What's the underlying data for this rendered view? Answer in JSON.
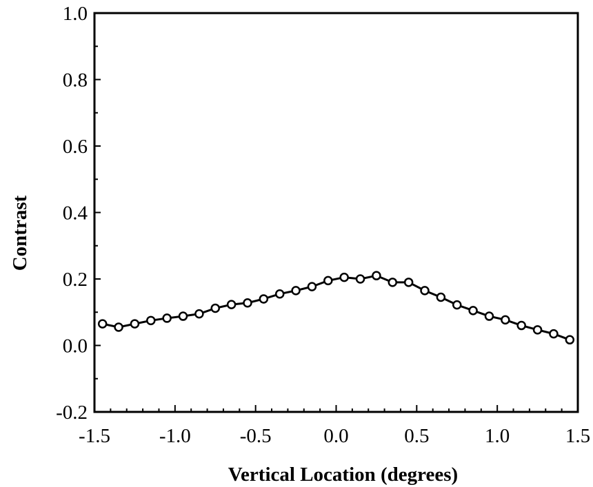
{
  "chart_data": {
    "type": "line",
    "title": "",
    "xlabel": "Vertical Location (degrees)",
    "ylabel": "Contrast",
    "xlim": [
      -1.5,
      1.5
    ],
    "ylim": [
      -0.2,
      1.0
    ],
    "x_ticks": [
      -1.5,
      -1.0,
      -0.5,
      0.0,
      0.5,
      1.0,
      1.5
    ],
    "x_tick_labels": [
      "-1.5",
      "-1.0",
      "-0.5",
      "0.0",
      "0.5",
      "1.0",
      "1.5"
    ],
    "y_ticks": [
      -0.2,
      0.0,
      0.2,
      0.4,
      0.6,
      0.8,
      1.0
    ],
    "y_tick_labels": [
      "-0.2",
      "0.0",
      "0.2",
      "0.4",
      "0.6",
      "0.8",
      "1.0"
    ],
    "grid": false,
    "legend": "none",
    "marker": "open-circle",
    "line_color": "#000000",
    "series": [
      {
        "x": [
          -1.45,
          -1.35,
          -1.25,
          -1.15,
          -1.05,
          -0.95,
          -0.85,
          -0.75,
          -0.65,
          -0.55,
          -0.45,
          -0.35,
          -0.25,
          -0.15,
          -0.05,
          0.05,
          0.15,
          0.25,
          0.35,
          0.45,
          0.55,
          0.65,
          0.75,
          0.85,
          0.95,
          1.05,
          1.15,
          1.25,
          1.35,
          1.45
        ],
        "values": [
          0.065,
          0.055,
          0.065,
          0.075,
          0.082,
          0.088,
          0.095,
          0.112,
          0.123,
          0.128,
          0.14,
          0.155,
          0.165,
          0.177,
          0.195,
          0.205,
          0.2,
          0.21,
          0.19,
          0.19,
          0.165,
          0.145,
          0.122,
          0.105,
          0.088,
          0.077,
          0.06,
          0.047,
          0.035,
          0.017
        ]
      }
    ]
  }
}
